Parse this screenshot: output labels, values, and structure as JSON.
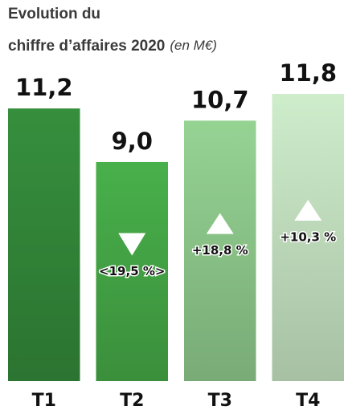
{
  "chart_data": {
    "type": "bar",
    "title": [
      "Evolution du",
      "chiffre d’affaires 2020"
    ],
    "subtitle": "(en M€)",
    "categories": [
      "T1",
      "T2",
      "T3",
      "T4"
    ],
    "values": [
      11.2,
      9.0,
      10.7,
      11.8
    ],
    "value_labels": [
      "11,2",
      "9,0",
      "10,7",
      "11,8"
    ],
    "changes": [
      null,
      "<19,5 %>",
      "+18,8 %",
      "+10,3 %"
    ],
    "colors": [
      "#33883a",
      "#45a846",
      "#8ec98c",
      "#c4e2c1"
    ]
  }
}
